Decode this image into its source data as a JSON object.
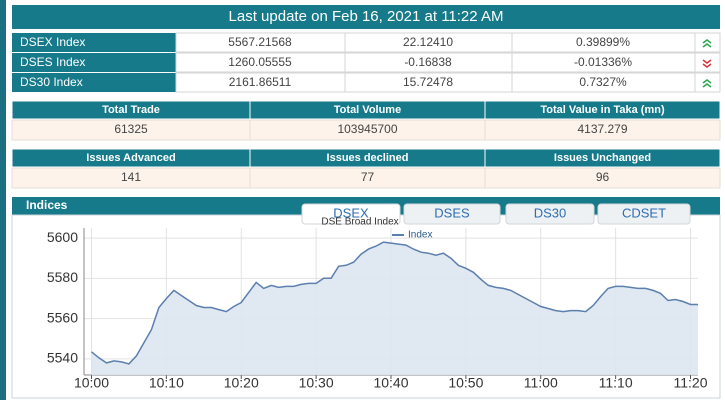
{
  "header": {
    "title": "Last update on Feb 16, 2021 at 11:22 AM"
  },
  "indices": {
    "rows": [
      {
        "name": "DSEX Index",
        "value": "5567.21568",
        "change": "22.12410",
        "percent": "0.39899%"
      },
      {
        "name": "DSES Index",
        "value": "1260.05555",
        "change": "-0.16838",
        "percent": "-0.01336%"
      },
      {
        "name": "DS30 Index",
        "value": "2161.86511",
        "change": "15.72478",
        "percent": "0.7327%"
      }
    ]
  },
  "trade": {
    "headers": [
      "Total Trade",
      "Total Volume",
      "Total Value in Taka (mn)"
    ],
    "values": [
      "61325",
      "103945700",
      "4137.279"
    ]
  },
  "issues": {
    "headers": [
      "Issues Advanced",
      "Issues declined",
      "Issues Unchanged"
    ],
    "values": [
      "141",
      "77",
      "96"
    ]
  },
  "panel": {
    "title": "Indices",
    "tabs": [
      "DSEX",
      "DSES",
      "DS30",
      "CDSET"
    ]
  },
  "chart_data": {
    "type": "area",
    "subtitle": "DSE Broad Index",
    "x": [
      "10:00",
      "10:01",
      "10:02",
      "10:03",
      "10:04",
      "10:05",
      "10:06",
      "10:07",
      "10:08",
      "10:09",
      "10:10",
      "10:11",
      "10:12",
      "10:13",
      "10:14",
      "10:15",
      "10:16",
      "10:17",
      "10:18",
      "10:19",
      "10:20",
      "10:21",
      "10:22",
      "10:23",
      "10:24",
      "10:25",
      "10:26",
      "10:27",
      "10:28",
      "10:29",
      "10:30",
      "10:31",
      "10:32",
      "10:33",
      "10:34",
      "10:35",
      "10:36",
      "10:37",
      "10:38",
      "10:39",
      "10:40",
      "10:41",
      "10:42",
      "10:43",
      "10:44",
      "10:45",
      "10:46",
      "10:47",
      "10:48",
      "10:49",
      "10:50",
      "10:51",
      "10:52",
      "10:53",
      "10:54",
      "10:55",
      "10:56",
      "10:57",
      "10:58",
      "10:59",
      "11:00",
      "11:01",
      "11:02",
      "11:03",
      "11:04",
      "11:05",
      "11:06",
      "11:07",
      "11:08",
      "11:09",
      "11:10",
      "11:11",
      "11:12",
      "11:13",
      "11:14",
      "11:15",
      "11:16",
      "11:17",
      "11:18",
      "11:19",
      "11:20",
      "11:21"
    ],
    "series": [
      {
        "name": "Index",
        "color": "#5b7fae",
        "values": [
          5543.5,
          5540.5,
          5538,
          5539,
          5538.5,
          5537.5,
          5541.5,
          5548,
          5554.5,
          5565.5,
          5570,
          5574,
          5571.5,
          5569,
          5566.5,
          5565.5,
          5565.5,
          5564.5,
          5563.5,
          5566,
          5568,
          5573,
          5578,
          5575,
          5576.5,
          5575.5,
          5576,
          5576,
          5577,
          5577.5,
          5577.5,
          5580,
          5580,
          5586,
          5586.5,
          5588,
          5592,
          5594.5,
          5596,
          5598,
          5597.5,
          5597,
          5596.5,
          5594.5,
          5593,
          5592.5,
          5591.5,
          5592.5,
          5590,
          5586.5,
          5585,
          5583,
          5579.5,
          5576.5,
          5575.5,
          5575,
          5574,
          5572,
          5570,
          5568,
          5566,
          5565,
          5564,
          5563.5,
          5564,
          5564,
          5563.5,
          5566.5,
          5571,
          5575,
          5576,
          5576,
          5575.5,
          5575,
          5575,
          5574,
          5572.5,
          5569,
          5569.5,
          5568.5,
          5567,
          5567
        ]
      }
    ],
    "xlim": [
      "09:59",
      "11:21"
    ],
    "xticks": [
      "10:00",
      "10:10",
      "10:20",
      "10:30",
      "10:40",
      "10:50",
      "11:00",
      "11:10",
      "11:20"
    ],
    "ylim": [
      5532,
      5605
    ],
    "yticks": [
      5540,
      5560,
      5580,
      5600
    ],
    "grid": true
  }
}
